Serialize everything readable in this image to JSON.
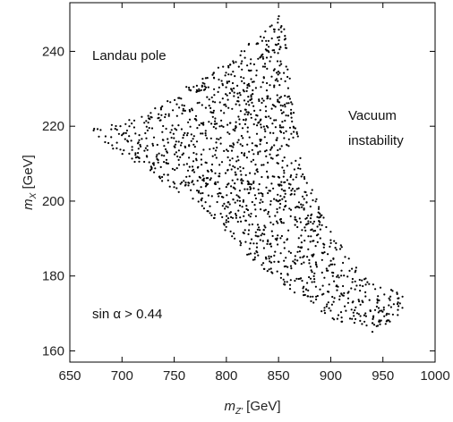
{
  "chart_data": {
    "type": "scatter",
    "marker_color": "#000000",
    "xlabel": {
      "var": "m",
      "sub": "Z'",
      "unit": " [GeV]"
    },
    "ylabel": {
      "var": "m",
      "sub": "X",
      "unit": " [GeV]"
    },
    "xlim": [
      650,
      1000
    ],
    "ylim": [
      157,
      253
    ],
    "xticks": [
      650,
      700,
      750,
      800,
      850,
      900,
      950,
      1000
    ],
    "yticks": [
      160,
      180,
      200,
      220,
      240
    ],
    "xtick_labels": [
      "650",
      "700",
      "750",
      "800",
      "850",
      "900",
      "950",
      "1000"
    ],
    "ytick_labels": [
      "160",
      "180",
      "200",
      "220",
      "240"
    ],
    "grid": false,
    "annotations": {
      "landau": "Landau pole",
      "vacuum_line1": "Vacuum",
      "vacuum_line2": "instability",
      "sin_condition": "sin α > 0.44"
    },
    "region_vertices": [
      [
        670,
        219.5
      ],
      [
        712,
        222
      ],
      [
        740,
        226
      ],
      [
        768,
        232
      ],
      [
        805,
        238
      ],
      [
        838,
        246
      ],
      [
        853,
        251
      ],
      [
        858,
        246
      ],
      [
        862,
        230
      ],
      [
        873,
        210
      ],
      [
        898,
        193
      ],
      [
        932,
        180
      ],
      [
        962,
        176
      ],
      [
        972,
        174
      ],
      [
        966,
        169
      ],
      [
        940,
        165
      ],
      [
        905,
        168
      ],
      [
        862,
        176
      ],
      [
        822,
        185
      ],
      [
        790,
        195
      ],
      [
        750,
        203
      ],
      [
        715,
        210
      ],
      [
        685,
        215
      ]
    ],
    "point_count": 1500
  }
}
